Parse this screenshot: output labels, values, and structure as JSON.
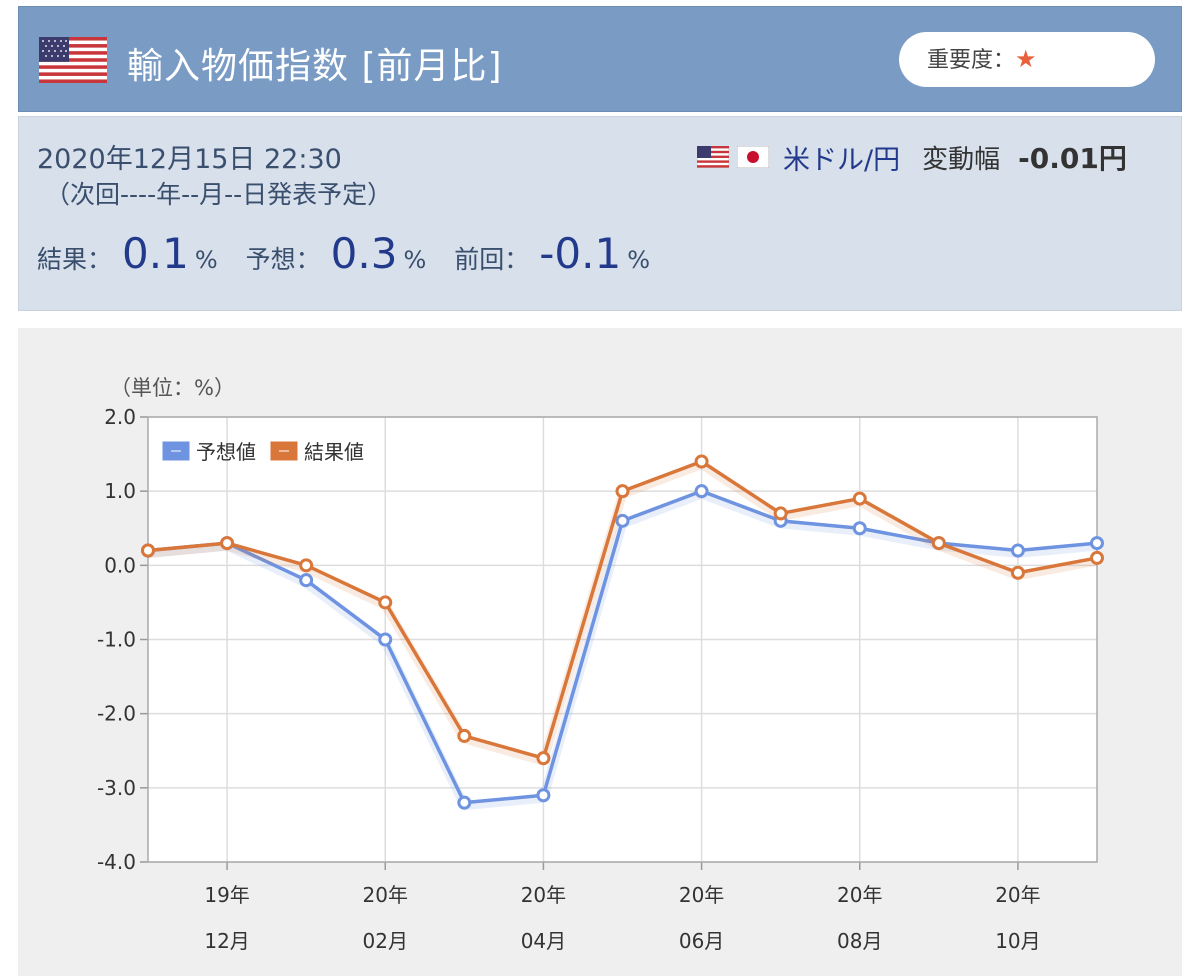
{
  "header": {
    "title": "輸入物価指数 [前月比]",
    "importance_label": "重要度：",
    "importance_icon": "star-icon",
    "country_flag": "us-flag-icon"
  },
  "info": {
    "release_datetime": "2020年12月15日 22:30",
    "next_release": "（次回----年--月--日発表予定）",
    "pair_label": "米ドル/円",
    "range_label": "変動幅",
    "range_value": "-0.01円",
    "result_label": "結果：",
    "result_value": "0.1",
    "forecast_label": "予想：",
    "forecast_value": "0.3",
    "previous_label": "前回：",
    "previous_value": "-0.1",
    "unit": "%"
  },
  "colors": {
    "header_bg": "#7a9bc3",
    "info_bg": "#d7e0eb",
    "value_text": "#233a8c",
    "forecast_series": "#6e93e0",
    "result_series": "#d9773a",
    "star": "#e8613c"
  },
  "chart_data": {
    "type": "line",
    "unit_label": "（単位：%）",
    "ylim": [
      -4.0,
      2.0
    ],
    "yticks": [
      2.0,
      1.0,
      0.0,
      -1.0,
      -2.0,
      -3.0,
      -4.0
    ],
    "ytick_labels": [
      "2.0",
      "1.0",
      "0.0",
      "-1.0",
      "-2.0",
      "-3.0",
      "-4.0"
    ],
    "x": [
      "19/11",
      "19/12",
      "20/01",
      "20/02",
      "20/03",
      "20/04",
      "20/05",
      "20/06",
      "20/07",
      "20/08",
      "20/09",
      "20/10",
      "20/11"
    ],
    "xtick_labels": [
      {
        "index": 1,
        "line1": "19年",
        "line2": "12月"
      },
      {
        "index": 3,
        "line1": "20年",
        "line2": "02月"
      },
      {
        "index": 5,
        "line1": "20年",
        "line2": "04月"
      },
      {
        "index": 7,
        "line1": "20年",
        "line2": "06月"
      },
      {
        "index": 9,
        "line1": "20年",
        "line2": "08月"
      },
      {
        "index": 11,
        "line1": "20年",
        "line2": "10月"
      }
    ],
    "grid": true,
    "legend_position": "top-left",
    "series": [
      {
        "name": "予想値",
        "color": "#6e93e0",
        "values": [
          0.2,
          0.3,
          -0.2,
          -1.0,
          -3.2,
          -3.1,
          0.6,
          1.0,
          0.6,
          0.5,
          0.3,
          0.2,
          0.3
        ]
      },
      {
        "name": "結果値",
        "color": "#d9773a",
        "values": [
          0.2,
          0.3,
          0.0,
          -0.5,
          -2.3,
          -2.6,
          1.0,
          1.4,
          0.7,
          0.9,
          0.3,
          -0.1,
          0.1
        ]
      }
    ]
  }
}
